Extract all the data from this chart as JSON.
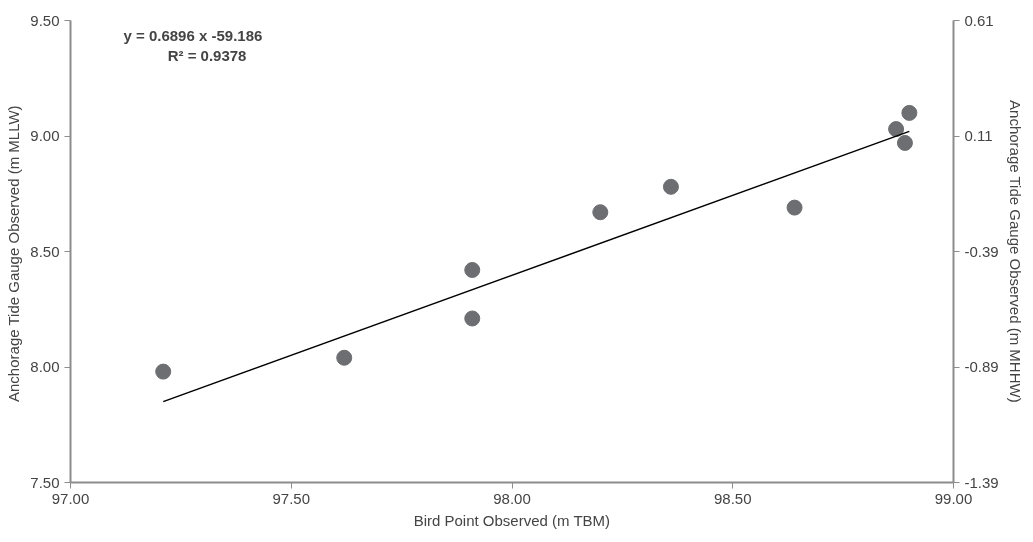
{
  "chart_data": {
    "type": "scatter",
    "xlabel": "Bird Point Observed (m TBM)",
    "ylabel": "Anchorage Tide Gauge  Observed (m MLLW)",
    "y2label": "Anchorage Tide Gauge Observed (m MHHW)",
    "annotations": [
      "y = 0.6896 x -59.186",
      "R² = 0.9378"
    ],
    "xlim": [
      97.0,
      99.0
    ],
    "xticks": [
      {
        "value": 97.0,
        "label": "97.00"
      },
      {
        "value": 97.5,
        "label": "97.50"
      },
      {
        "value": 98.0,
        "label": "98.00"
      },
      {
        "value": 98.5,
        "label": "98.50"
      },
      {
        "value": 99.0,
        "label": "99.00"
      }
    ],
    "ylim": [
      7.5,
      9.5
    ],
    "yticks": [
      {
        "value": 7.5,
        "label": "7.50"
      },
      {
        "value": 8.0,
        "label": "8.00"
      },
      {
        "value": 8.5,
        "label": "8.50"
      },
      {
        "value": 9.0,
        "label": "9.00"
      },
      {
        "value": 9.5,
        "label": "9.50"
      }
    ],
    "y2lim": [
      -1.39,
      0.61
    ],
    "y2ticks": [
      -1.39,
      -0.89,
      -0.39,
      0.11,
      0.61
    ],
    "grid": false,
    "series": [
      {
        "marker": "circle",
        "color": "#6d6e71",
        "x": [
          97.21,
          97.62,
          97.91,
          97.91,
          98.2,
          98.36,
          98.64,
          98.87,
          98.89,
          98.9
        ],
        "values": [
          7.98,
          8.04,
          8.42,
          8.21,
          8.67,
          8.78,
          8.69,
          9.03,
          8.97,
          9.1
        ]
      },
      {
        "type": "line",
        "color": "#000000",
        "x": [
          97.21,
          98.9
        ],
        "values": [
          7.85,
          9.02
        ]
      }
    ]
  }
}
